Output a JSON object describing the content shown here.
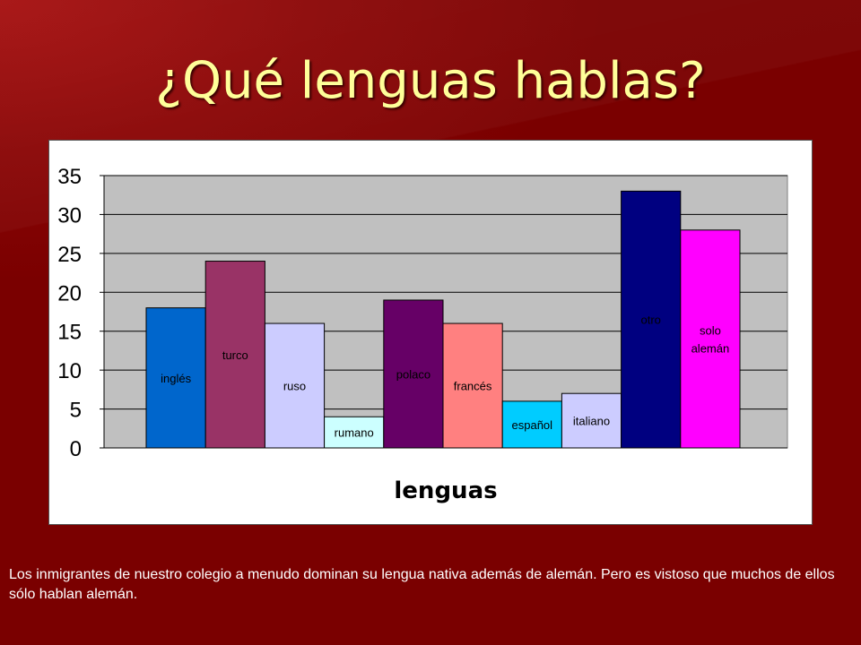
{
  "slide": {
    "title": "¿Qué lenguas hablas?",
    "caption": "Los inmigrantes de nuestro colegio a menudo dominan su lengua nativa además de alemán. Pero es vistoso que muchos de ellos sólo hablan alemán.",
    "background_color": "#7a0000",
    "title_color": "#ffff99"
  },
  "chart_data": {
    "type": "bar",
    "xlabel": "lenguas",
    "ylabel": "",
    "ylim": [
      0,
      35
    ],
    "yticks": [
      "0",
      "5",
      "10",
      "15",
      "20",
      "25",
      "30",
      "35"
    ],
    "grid": true,
    "legend": "none",
    "plot_background": "#c0c0c0",
    "categories": [
      "inglés",
      "turco",
      "ruso",
      "rumano",
      "polaco",
      "francés",
      "español",
      "italiano",
      "otro",
      "solo alemán"
    ],
    "bar_labels": [
      "inglés",
      "turco",
      "ruso",
      "rumano",
      "polaco",
      "francés",
      "español",
      "italiano",
      "otro",
      "solo\nalemán"
    ],
    "values": [
      18,
      24,
      16,
      4,
      19,
      16,
      6,
      7,
      33,
      28
    ],
    "colors": [
      "#0066cc",
      "#993366",
      "#ccccff",
      "#ccffff",
      "#660066",
      "#ff8080",
      "#00ccff",
      "#ccccff",
      "#000080",
      "#ff00ff"
    ]
  }
}
